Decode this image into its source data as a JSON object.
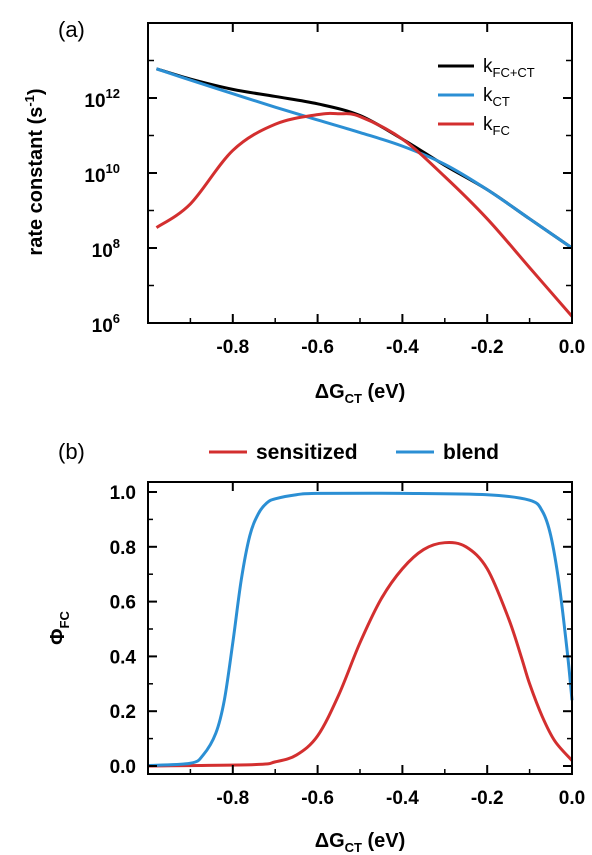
{
  "chart_data": [
    {
      "panel": "(a)",
      "type": "line",
      "yscale": "log",
      "xlabel": {
        "main": "ΔG",
        "sub": "CT",
        "tail": " (eV)"
      },
      "ylabel": {
        "main": "rate constant (s",
        "sup": "-1",
        "tail": ")"
      },
      "xlim": [
        -1.0,
        0.0
      ],
      "ylim": [
        1000000.0,
        100000000000000.0
      ],
      "x_ticks": [
        -0.8,
        -0.6,
        -0.4,
        -0.2,
        0.0
      ],
      "x_tick_labels": [
        "-0.8",
        "-0.6",
        "-0.4",
        "-0.2",
        "0.0"
      ],
      "y_ticks": [
        1000000.0,
        100000000.0,
        10000000000.0,
        1000000000000.0
      ],
      "y_tick_labels": [
        {
          "base": "10",
          "exp": "6"
        },
        {
          "base": "10",
          "exp": "8"
        },
        {
          "base": "10",
          "exp": "10"
        },
        {
          "base": "10",
          "exp": "12"
        }
      ],
      "legend_position": "top-right",
      "series": [
        {
          "name": "k",
          "name_sub": "FC+CT",
          "color": "#000000",
          "x": [
            -0.98,
            -0.9,
            -0.8,
            -0.7,
            -0.6,
            -0.5,
            -0.4,
            -0.3,
            -0.2,
            -0.1,
            0.0
          ],
          "y": [
            6000000000000.0,
            3200000000000.0,
            1700000000000.0,
            1100000000000.0,
            700000000000.0,
            340000000000.0,
            80000000000.0,
            16000000000.0,
            3600000000.0,
            600000000.0,
            100000000.0
          ]
        },
        {
          "name": "k",
          "name_sub": "CT",
          "color": "#2b8fd4",
          "x": [
            -0.98,
            -0.9,
            -0.8,
            -0.7,
            -0.6,
            -0.5,
            -0.4,
            -0.3,
            -0.2,
            -0.1,
            0.0
          ],
          "y": [
            6000000000000.0,
            3000000000000.0,
            1300000000000.0,
            570000000000.0,
            260000000000.0,
            120000000000.0,
            52000000000.0,
            17000000000.0,
            3600000000.0,
            600000000.0,
            100000000.0
          ]
        },
        {
          "name": "k",
          "name_sub": "FC",
          "color": "#d32f2f",
          "x": [
            -0.98,
            -0.9,
            -0.8,
            -0.7,
            -0.6,
            -0.55,
            -0.5,
            -0.4,
            -0.3,
            -0.2,
            -0.1,
            0.0
          ],
          "y": [
            350000000.0,
            1500000000.0,
            40000000000.0,
            200000000000.0,
            360000000000.0,
            380000000000.0,
            320000000000.0,
            80000000000.0,
            8000000000.0,
            600000000.0,
            30000000.0,
            1500000.0
          ]
        }
      ]
    },
    {
      "panel": "(b)",
      "type": "line",
      "xlabel": {
        "main": "ΔG",
        "sub": "CT",
        "tail": " (eV)"
      },
      "ylabel": {
        "main": "Φ",
        "sub": "FC",
        "tail": ""
      },
      "xlim": [
        -1.0,
        0.0
      ],
      "ylim": [
        0.0,
        1.0
      ],
      "x_ticks": [
        -0.8,
        -0.6,
        -0.4,
        -0.2,
        0.0
      ],
      "x_tick_labels": [
        "-0.8",
        "-0.6",
        "-0.4",
        "-0.2",
        "0.0"
      ],
      "y_ticks": [
        0.0,
        0.2,
        0.4,
        0.6,
        0.8,
        1.0
      ],
      "y_tick_labels": [
        "0.0",
        "0.2",
        "0.4",
        "0.6",
        "0.8",
        "1.0"
      ],
      "legend_position": "top",
      "series": [
        {
          "name": "sensitized",
          "color": "#d32f2f",
          "x": [
            -1.0,
            -0.75,
            -0.7,
            -0.65,
            -0.6,
            -0.55,
            -0.5,
            -0.45,
            -0.4,
            -0.35,
            -0.3,
            -0.25,
            -0.2,
            -0.15,
            -0.12,
            -0.1,
            -0.07,
            -0.04,
            0.0
          ],
          "y": [
            0.0,
            0.005,
            0.015,
            0.04,
            0.11,
            0.26,
            0.45,
            0.61,
            0.72,
            0.79,
            0.815,
            0.8,
            0.72,
            0.54,
            0.4,
            0.3,
            0.18,
            0.09,
            0.02
          ]
        },
        {
          "name": "blend",
          "color": "#2b8fd4",
          "x": [
            -1.0,
            -0.9,
            -0.87,
            -0.84,
            -0.82,
            -0.8,
            -0.78,
            -0.76,
            -0.74,
            -0.72,
            -0.7,
            -0.65,
            -0.6,
            -0.4,
            -0.2,
            -0.1,
            -0.07,
            -0.05,
            -0.03,
            -0.01,
            0.0
          ],
          "y": [
            0.002,
            0.01,
            0.04,
            0.12,
            0.24,
            0.45,
            0.68,
            0.84,
            0.92,
            0.96,
            0.975,
            0.99,
            0.995,
            0.995,
            0.99,
            0.97,
            0.93,
            0.84,
            0.66,
            0.4,
            0.24
          ]
        }
      ]
    }
  ]
}
